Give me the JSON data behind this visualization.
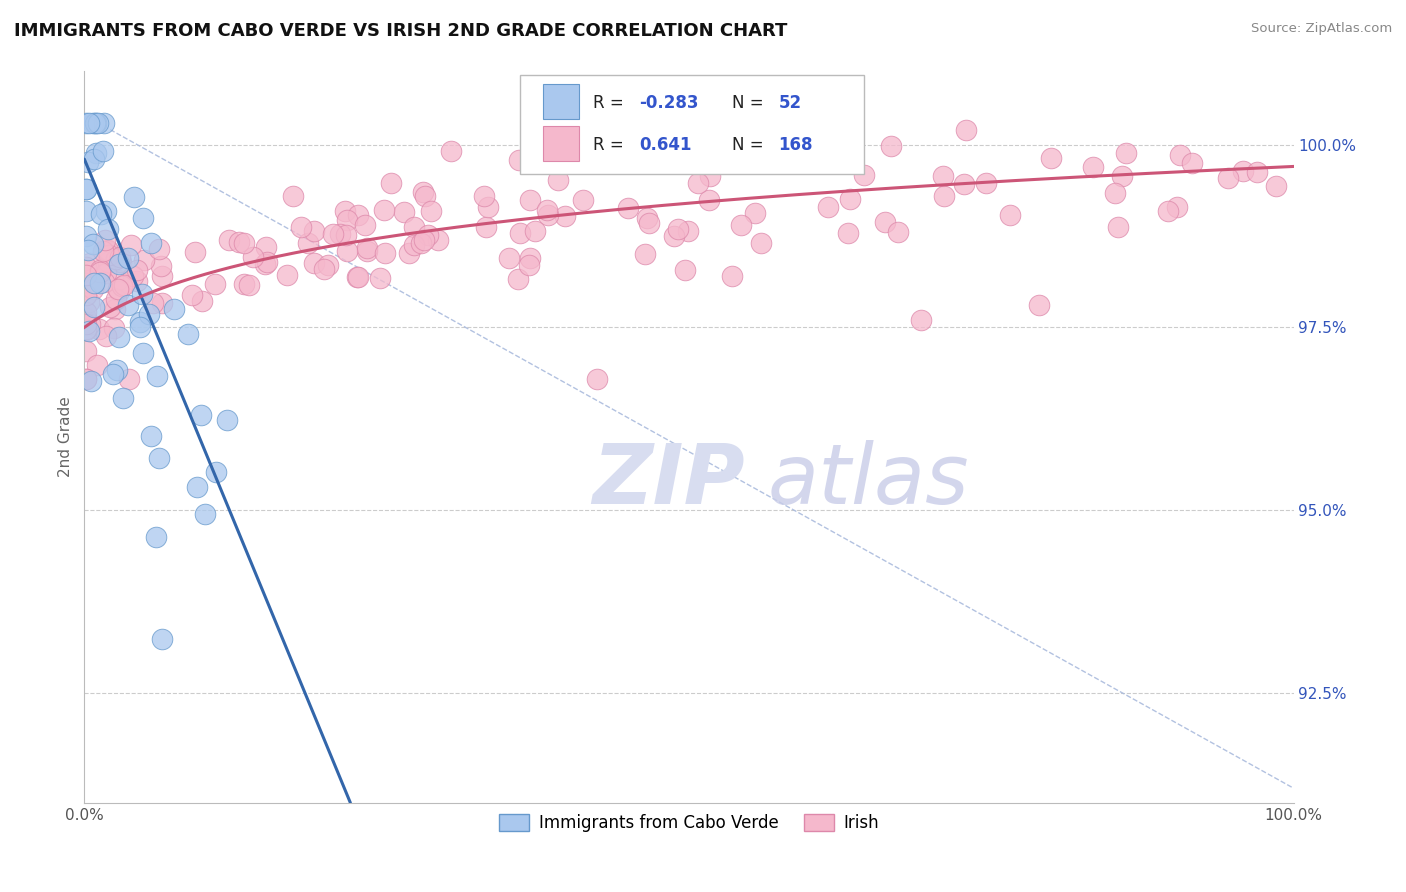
{
  "title": "IMMIGRANTS FROM CABO VERDE VS IRISH 2ND GRADE CORRELATION CHART",
  "source_text": "Source: ZipAtlas.com",
  "ylabel": "2nd Grade",
  "xlim": [
    0.0,
    1.0
  ],
  "ymin": 91.0,
  "ymax": 101.0,
  "ytick_values": [
    92.5,
    95.0,
    97.5,
    100.0
  ],
  "cabo_verde_color": "#aac8ee",
  "cabo_verde_edge": "#6699cc",
  "cabo_verde_line_color": "#3366aa",
  "irish_color": "#f5b8cc",
  "irish_edge": "#dd88aa",
  "irish_line_color": "#cc5577",
  "diag_color": "#aabbdd",
  "cabo_verde_R": -0.283,
  "cabo_verde_N": 52,
  "irish_R": 0.641,
  "irish_N": 168,
  "legend_label_cabo": "Immigrants from Cabo Verde",
  "legend_label_irish": "Irish",
  "title_fontsize": 13,
  "tick_fontsize": 11,
  "ylabel_fontsize": 11
}
